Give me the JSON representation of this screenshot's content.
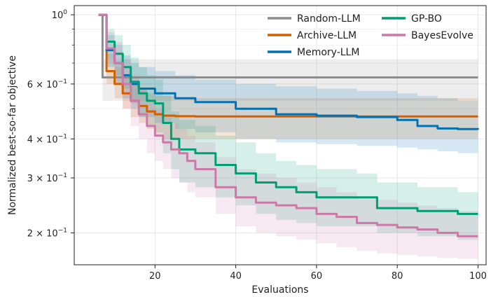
{
  "chart_data": {
    "type": "line",
    "title": "",
    "xlabel": "Evaluations",
    "ylabel": "Normalized best-so-far objective",
    "xlim": [
      0,
      102
    ],
    "ylim": [
      0.158,
      1.07
    ],
    "yscale": "log",
    "grid": true,
    "legend": "top-right",
    "x_ticks": [
      {
        "value": 20,
        "label": "20"
      },
      {
        "value": 40,
        "label": "40"
      },
      {
        "value": 60,
        "label": "60"
      },
      {
        "value": 80,
        "label": "80"
      },
      {
        "value": 100,
        "label": "100"
      }
    ],
    "y_ticks": [
      {
        "value": 1.0,
        "mant": "10",
        "exp": "0"
      },
      {
        "value": 0.6,
        "mant": "6 × 10",
        "exp": "−1"
      },
      {
        "value": 0.4,
        "mant": "4 × 10",
        "exp": "−1"
      },
      {
        "value": 0.3,
        "mant": "3 × 10",
        "exp": "−1"
      },
      {
        "value": 0.2,
        "mant": "2 × 10",
        "exp": "−1"
      }
    ],
    "y_minor_ticks": [
      0.9,
      0.8,
      0.7,
      0.5
    ],
    "series": [
      {
        "name": "Random-LLM",
        "color": "#8c8c8c",
        "x": [
          6,
          7,
          10,
          20,
          40,
          60,
          80,
          100
        ],
        "y": [
          1.0,
          0.63,
          0.63,
          0.63,
          0.63,
          0.63,
          0.63,
          0.63
        ],
        "lower": [
          1.0,
          0.53,
          0.53,
          0.53,
          0.53,
          0.53,
          0.53,
          0.53
        ],
        "upper": [
          1.0,
          0.72,
          0.72,
          0.72,
          0.72,
          0.72,
          0.72,
          0.72
        ]
      },
      {
        "name": "Archive-LLM",
        "color": "#d55e00",
        "x": [
          6,
          8,
          10,
          12,
          14,
          16,
          18,
          20,
          22,
          25,
          30,
          40,
          60,
          80,
          100
        ],
        "y": [
          1.0,
          0.66,
          0.6,
          0.56,
          0.53,
          0.51,
          0.49,
          0.48,
          0.475,
          0.473,
          0.472,
          0.472,
          0.472,
          0.472,
          0.472
        ],
        "lower": [
          1.0,
          0.6,
          0.54,
          0.5,
          0.47,
          0.45,
          0.43,
          0.41,
          0.4,
          0.4,
          0.4,
          0.4,
          0.4,
          0.4,
          0.4
        ],
        "upper": [
          1.0,
          0.75,
          0.68,
          0.63,
          0.6,
          0.58,
          0.56,
          0.55,
          0.55,
          0.54,
          0.54,
          0.54,
          0.54,
          0.54,
          0.54
        ]
      },
      {
        "name": "Memory-LLM",
        "color": "#0072b2",
        "x": [
          6,
          8,
          10,
          12,
          14,
          16,
          20,
          25,
          30,
          40,
          50,
          60,
          70,
          80,
          85,
          90,
          95,
          100
        ],
        "y": [
          1.0,
          0.77,
          0.7,
          0.64,
          0.6,
          0.58,
          0.56,
          0.54,
          0.525,
          0.5,
          0.48,
          0.475,
          0.47,
          0.46,
          0.44,
          0.432,
          0.43,
          0.429
        ],
        "lower": [
          1.0,
          0.68,
          0.6,
          0.54,
          0.5,
          0.47,
          0.45,
          0.43,
          0.42,
          0.4,
          0.39,
          0.385,
          0.38,
          0.375,
          0.37,
          0.365,
          0.36,
          0.36
        ],
        "upper": [
          1.0,
          0.86,
          0.8,
          0.74,
          0.7,
          0.68,
          0.66,
          0.64,
          0.62,
          0.6,
          0.59,
          0.58,
          0.57,
          0.56,
          0.55,
          0.54,
          0.53,
          0.53
        ]
      },
      {
        "name": "GP-BO",
        "color": "#009e73",
        "x": [
          6,
          8,
          10,
          12,
          14,
          16,
          18,
          20,
          22,
          24,
          26,
          30,
          35,
          40,
          45,
          50,
          55,
          60,
          65,
          70,
          75,
          80,
          85,
          90,
          95,
          100
        ],
        "y": [
          1.0,
          0.82,
          0.75,
          0.68,
          0.61,
          0.56,
          0.53,
          0.52,
          0.45,
          0.4,
          0.37,
          0.36,
          0.33,
          0.31,
          0.29,
          0.28,
          0.27,
          0.26,
          0.26,
          0.26,
          0.24,
          0.24,
          0.235,
          0.235,
          0.23,
          0.23
        ],
        "lower": [
          1.0,
          0.72,
          0.64,
          0.58,
          0.52,
          0.47,
          0.44,
          0.42,
          0.36,
          0.32,
          0.29,
          0.28,
          0.26,
          0.245,
          0.23,
          0.22,
          0.215,
          0.21,
          0.21,
          0.21,
          0.2,
          0.2,
          0.195,
          0.195,
          0.19,
          0.19
        ],
        "upper": [
          1.0,
          0.9,
          0.86,
          0.8,
          0.73,
          0.68,
          0.64,
          0.62,
          0.55,
          0.49,
          0.46,
          0.44,
          0.41,
          0.39,
          0.36,
          0.34,
          0.33,
          0.32,
          0.32,
          0.31,
          0.29,
          0.29,
          0.28,
          0.28,
          0.27,
          0.27
        ]
      },
      {
        "name": "BayesEvolve",
        "color": "#cc79a7",
        "x": [
          6,
          8,
          10,
          12,
          14,
          16,
          18,
          20,
          22,
          24,
          26,
          28,
          30,
          35,
          40,
          45,
          50,
          55,
          60,
          65,
          70,
          75,
          80,
          85,
          90,
          95,
          100
        ],
        "y": [
          1.0,
          0.78,
          0.7,
          0.6,
          0.53,
          0.48,
          0.44,
          0.41,
          0.39,
          0.37,
          0.36,
          0.34,
          0.32,
          0.28,
          0.26,
          0.25,
          0.245,
          0.24,
          0.23,
          0.225,
          0.215,
          0.212,
          0.208,
          0.205,
          0.2,
          0.195,
          0.195
        ],
        "lower": [
          1.0,
          0.7,
          0.6,
          0.5,
          0.44,
          0.4,
          0.36,
          0.34,
          0.32,
          0.3,
          0.29,
          0.27,
          0.26,
          0.23,
          0.21,
          0.2,
          0.195,
          0.19,
          0.185,
          0.18,
          0.175,
          0.172,
          0.17,
          0.168,
          0.166,
          0.165,
          0.164
        ],
        "upper": [
          1.0,
          0.88,
          0.82,
          0.72,
          0.64,
          0.58,
          0.53,
          0.5,
          0.47,
          0.45,
          0.43,
          0.41,
          0.39,
          0.35,
          0.32,
          0.31,
          0.3,
          0.29,
          0.28,
          0.27,
          0.26,
          0.255,
          0.25,
          0.245,
          0.24,
          0.235,
          0.235
        ]
      }
    ]
  }
}
